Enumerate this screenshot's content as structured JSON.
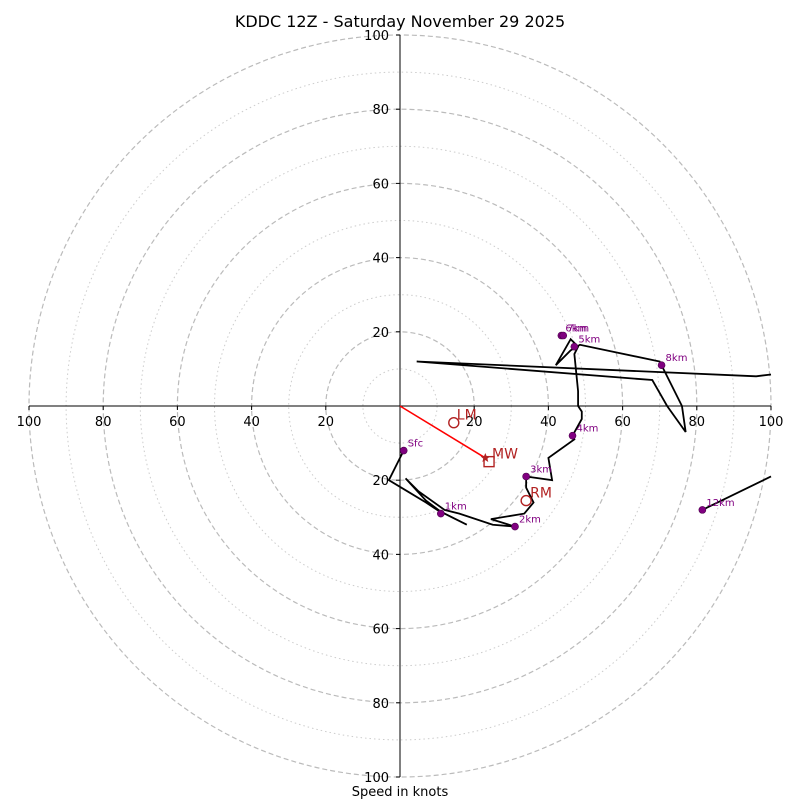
{
  "chart_data": {
    "type": "hodograph",
    "title": "KDDC 12Z - Saturday November 29 2025",
    "xlabel": "Speed in knots",
    "ylabel": "",
    "xlim": [
      -100,
      100
    ],
    "ylim": [
      -100,
      100
    ],
    "rings": {
      "major_dashed": [
        20,
        40,
        60,
        80,
        100
      ],
      "minor_dotted": [
        10,
        30,
        50,
        70,
        90
      ]
    },
    "ticks": {
      "x": [
        {
          "value": -100,
          "label": "100"
        },
        {
          "value": -80,
          "label": "80"
        },
        {
          "value": -60,
          "label": "60"
        },
        {
          "value": -40,
          "label": "40"
        },
        {
          "value": -20,
          "label": "20"
        },
        {
          "value": 20,
          "label": "20"
        },
        {
          "value": 40,
          "label": "40"
        },
        {
          "value": 60,
          "label": "60"
        },
        {
          "value": 80,
          "label": "80"
        },
        {
          "value": 100,
          "label": "100"
        }
      ],
      "y": [
        {
          "value": 100,
          "label": "100"
        },
        {
          "value": 80,
          "label": "80"
        },
        {
          "value": 60,
          "label": "60"
        },
        {
          "value": 40,
          "label": "40"
        },
        {
          "value": 20,
          "label": "20"
        },
        {
          "value": -20,
          "label": "20"
        },
        {
          "value": -40,
          "label": "40"
        },
        {
          "value": -60,
          "label": "60"
        },
        {
          "value": -80,
          "label": "80"
        },
        {
          "value": -100,
          "label": "100"
        }
      ]
    },
    "hodograph_trace": {
      "color": "#000000",
      "points": [
        [
          1,
          -12
        ],
        [
          -3,
          -20
        ],
        [
          2,
          -23
        ],
        [
          7,
          -26
        ],
        [
          10,
          -28
        ],
        [
          14,
          -30
        ],
        [
          18,
          -32
        ],
        [
          11,
          -28.5
        ],
        [
          7,
          -25.5
        ],
        [
          1.5,
          -19.5
        ],
        [
          5,
          -23
        ],
        [
          12,
          -28
        ],
        [
          16,
          -29
        ],
        [
          25,
          -32
        ],
        [
          31,
          -32.5
        ],
        [
          24.5,
          -30.5
        ],
        [
          33.5,
          -29
        ],
        [
          36,
          -26
        ],
        [
          34,
          -22
        ],
        [
          34,
          -19
        ],
        [
          41,
          -20
        ],
        [
          40,
          -14
        ],
        [
          47,
          -9
        ],
        [
          46.5,
          -8
        ],
        [
          49,
          -3.5
        ],
        [
          49,
          -1.5
        ],
        [
          48,
          0
        ],
        [
          48,
          4
        ],
        [
          47,
          14
        ],
        [
          48,
          16
        ],
        [
          46,
          18
        ],
        [
          42,
          11
        ],
        [
          46,
          15
        ],
        [
          48.5,
          16.5
        ],
        [
          70,
          12
        ],
        [
          76,
          0
        ],
        [
          77,
          -7
        ],
        [
          72,
          0
        ],
        [
          68,
          7
        ],
        [
          4.5,
          12
        ],
        [
          96,
          8
        ],
        [
          100,
          8.5
        ]
      ],
      "upper_segment": [
        [
          81.5,
          -28
        ],
        [
          100,
          -19
        ]
      ]
    },
    "height_markers": [
      {
        "label": "Sfc",
        "x": 1,
        "y": -12
      },
      {
        "label": "1km",
        "x": 11,
        "y": -29
      },
      {
        "label": "2km",
        "x": 31,
        "y": -32.5
      },
      {
        "label": "3km",
        "x": 34,
        "y": -19
      },
      {
        "label": "4km",
        "x": 46.5,
        "y": -8
      },
      {
        "label": "5km",
        "x": 47,
        "y": 16
      },
      {
        "label": "6km",
        "x": 43.5,
        "y": 19
      },
      {
        "label": "7km",
        "x": 44,
        "y": 19
      },
      {
        "label": "8km",
        "x": 70.5,
        "y": 11
      },
      {
        "label": "12km",
        "x": 81.5,
        "y": -28
      }
    ],
    "storm_motion": {
      "color": "#b22222",
      "bunkers_left": {
        "label": "LM",
        "x": 14.5,
        "y": -4.5
      },
      "mean_wind": {
        "label": "MW",
        "x": 24,
        "y": -15
      },
      "bunkers_right": {
        "label": "RM",
        "x": 34,
        "y": -25.5
      },
      "vector_end": {
        "x": 23,
        "y": -14
      }
    }
  }
}
